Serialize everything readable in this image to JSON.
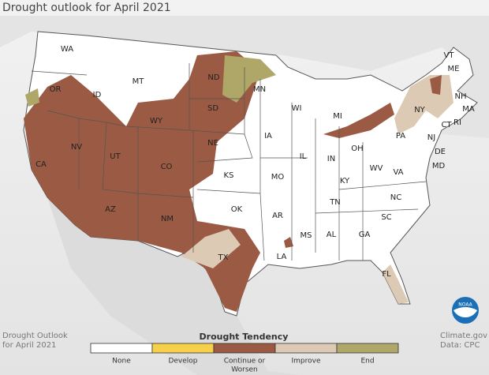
{
  "title": "Drought outlook for April 2021",
  "states": [
    "WA",
    "OR",
    "CA",
    "NV",
    "ID",
    "MT",
    "WY",
    "UT",
    "AZ",
    "CO",
    "NM",
    "ND",
    "SD",
    "NE",
    "KS",
    "OK",
    "TX",
    "MN",
    "IA",
    "MO",
    "AR",
    "LA",
    "WI",
    "IL",
    "MS",
    "MI",
    "IN",
    "KY",
    "TN",
    "AL",
    "GA",
    "FL",
    "OH",
    "WV",
    "VA",
    "NC",
    "SC",
    "PA",
    "NY",
    "NJ",
    "DE",
    "MD",
    "VT",
    "ME",
    "NH",
    "MA",
    "CT",
    "RI"
  ],
  "legend": {
    "title": "Drought Tendency",
    "items": [
      {
        "label": [
          "None"
        ],
        "color": "#ffffff"
      },
      {
        "label": [
          "Develop"
        ],
        "color": "#f7d04a"
      },
      {
        "label": [
          "Continue or",
          "Worsen"
        ],
        "color": "#9b5a43"
      },
      {
        "label": [
          "Improve"
        ],
        "color": "#dccab4"
      },
      {
        "label": [
          "End"
        ],
        "color": "#aea767"
      }
    ]
  },
  "footer_left": [
    "Drought Outlook",
    "for April 2021"
  ],
  "footer_right": [
    "Climate.gov",
    "Data: CPC"
  ],
  "logo": "NOAA"
}
